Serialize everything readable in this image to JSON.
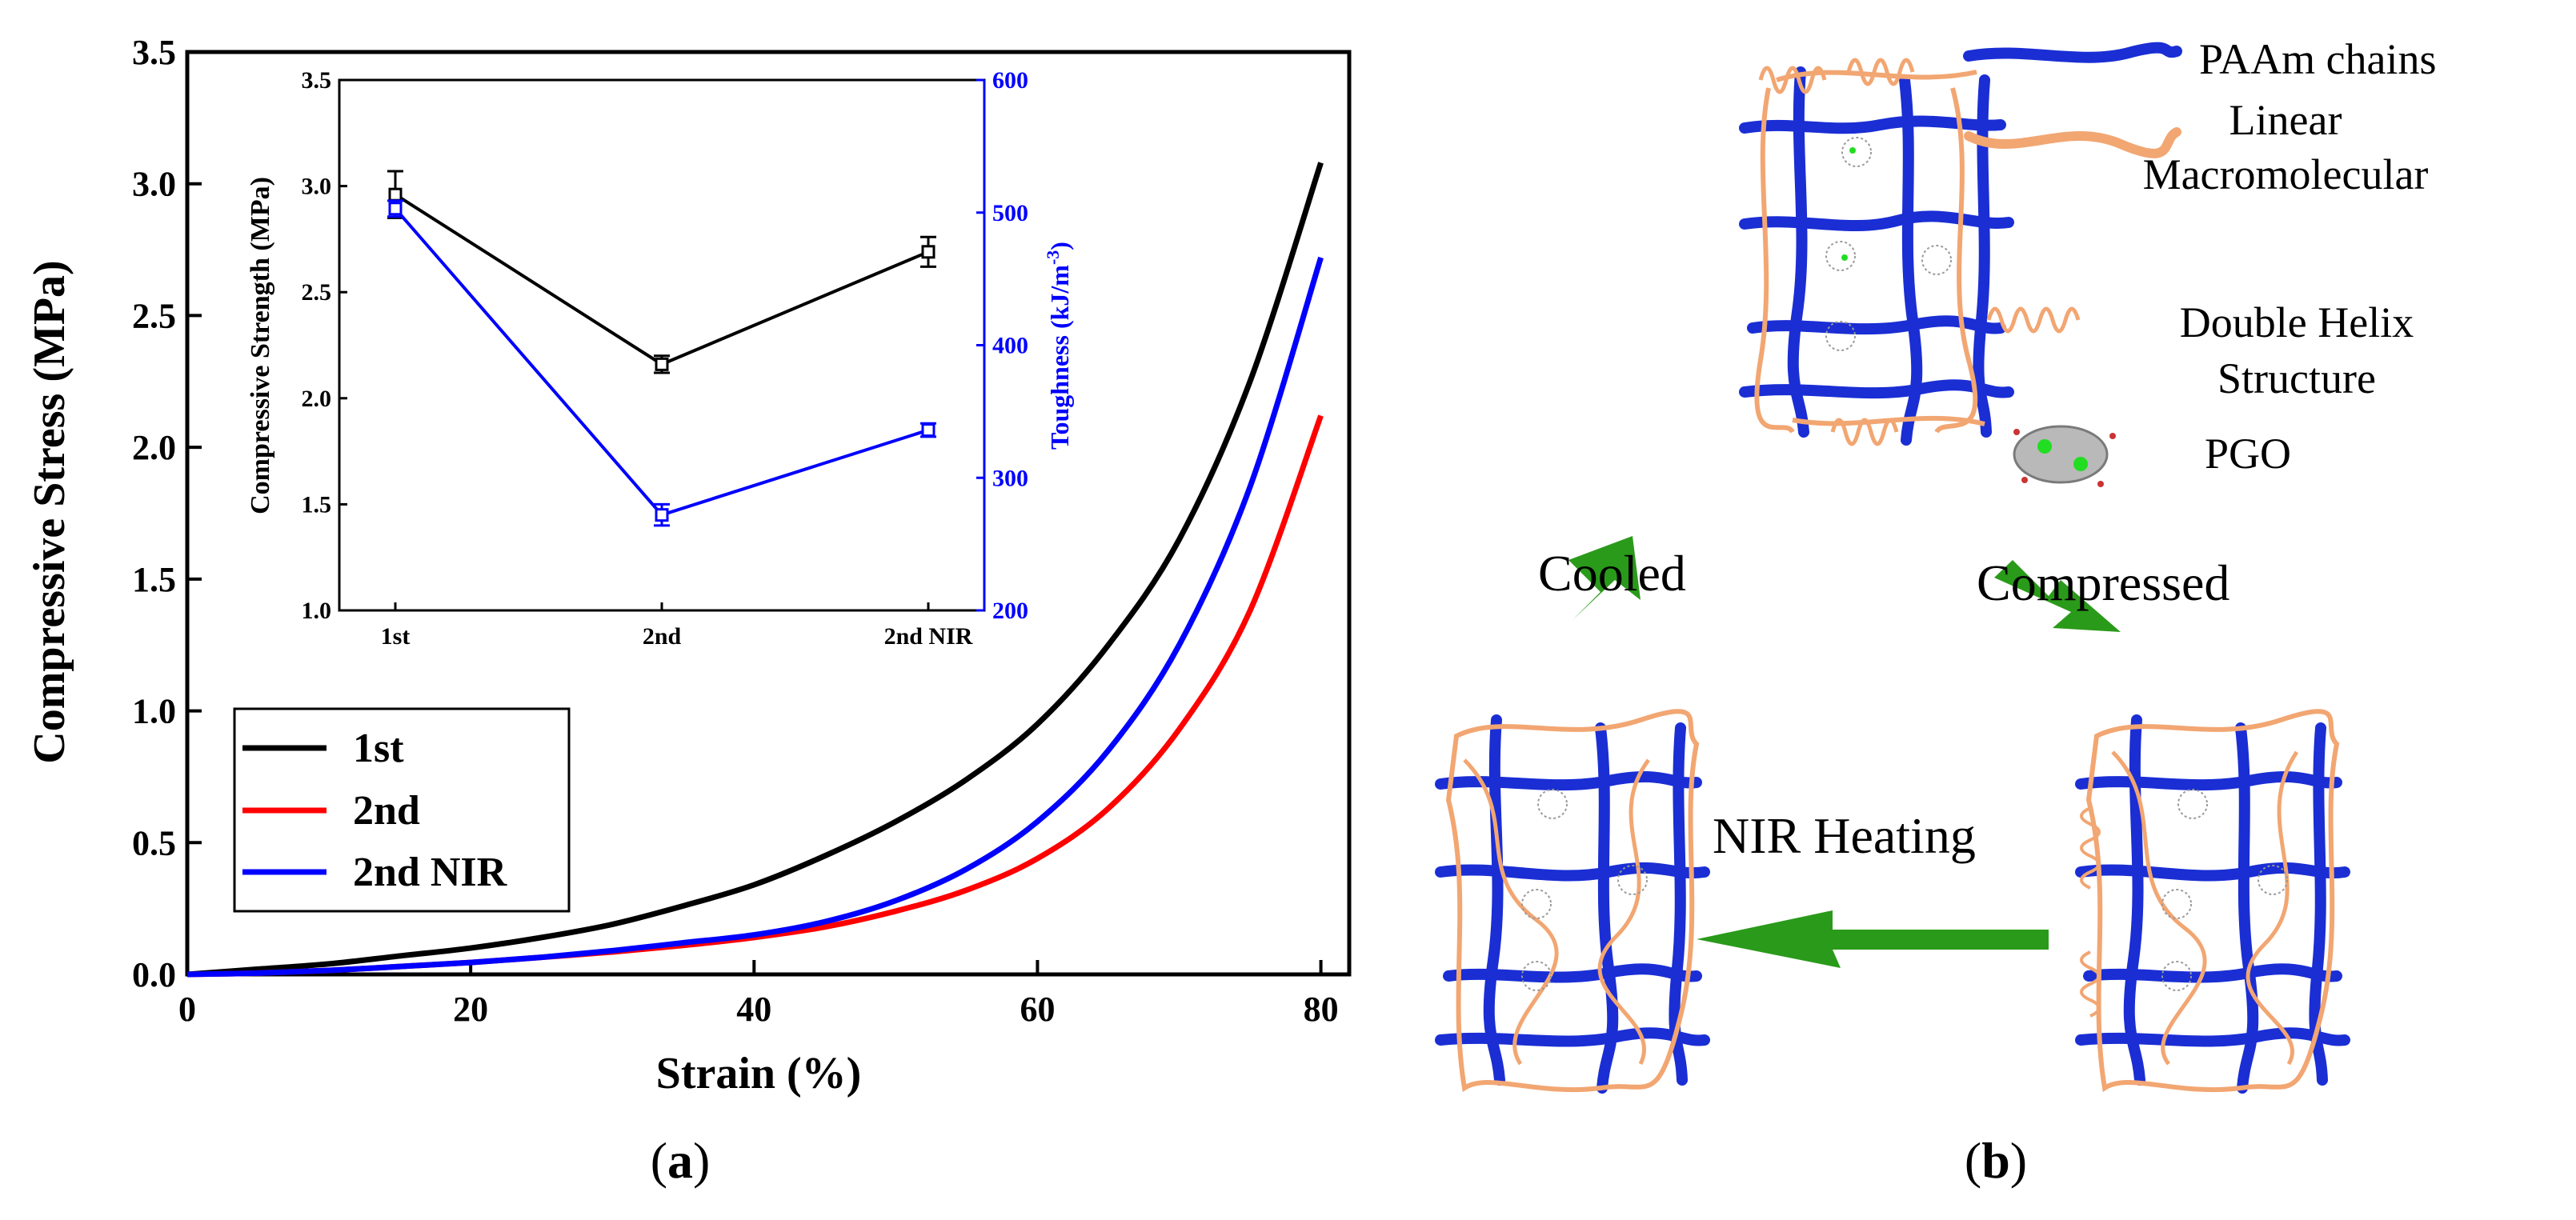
{
  "panel_a": {
    "label_open": "(",
    "label_letter": "a",
    "label_close": ")"
  },
  "panel_b": {
    "label_open": "(",
    "label_letter": "b",
    "label_close": ")",
    "legend": {
      "paam": "PAAm chains",
      "linear_1": "Linear",
      "linear_2": "Macromolecular",
      "helix_1": "Double Helix",
      "helix_2": "Structure",
      "pgo": "PGO"
    },
    "arrows": {
      "cooled": "Cooled",
      "compressed": "Compressed",
      "nir": "NIR Heating"
    }
  },
  "colors": {
    "first": "#000000",
    "second": "#ff0000",
    "nir": "#0000ff",
    "paam": "#1a2ed4",
    "linear": "#f2a672",
    "arrow": "#2a9a1a",
    "pgo_green": "#22dd22"
  },
  "chart_data": [
    {
      "type": "line",
      "title": "",
      "xlabel": "Strain (%)",
      "ylabel": "Compressive Stress (MPa)",
      "xlim": [
        0,
        82
      ],
      "ylim": [
        0,
        3.5
      ],
      "xticks": [
        0,
        20,
        40,
        60,
        80
      ],
      "yticks": [
        0.0,
        0.5,
        1.0,
        1.5,
        2.0,
        2.5,
        3.0,
        3.5
      ],
      "x": [
        0,
        5,
        10,
        15,
        20,
        25,
        30,
        35,
        40,
        45,
        50,
        55,
        60,
        65,
        70,
        75,
        80
      ],
      "series": [
        {
          "name": "1st",
          "values": [
            0.0,
            0.02,
            0.04,
            0.07,
            0.1,
            0.14,
            0.19,
            0.26,
            0.34,
            0.45,
            0.58,
            0.74,
            0.95,
            1.25,
            1.65,
            2.25,
            3.08
          ]
        },
        {
          "name": "2nd",
          "values": [
            0.0,
            0.005,
            0.015,
            0.03,
            0.045,
            0.065,
            0.085,
            0.11,
            0.14,
            0.18,
            0.24,
            0.32,
            0.44,
            0.63,
            0.93,
            1.38,
            2.12
          ]
        },
        {
          "name": "2nd NIR",
          "values": [
            0.0,
            0.005,
            0.015,
            0.03,
            0.045,
            0.065,
            0.09,
            0.12,
            0.15,
            0.2,
            0.28,
            0.4,
            0.58,
            0.85,
            1.25,
            1.85,
            2.72
          ]
        }
      ],
      "legend_position": "bottom-left"
    },
    {
      "type": "line",
      "title": "",
      "xlabel": "",
      "ylabel": "Compressive Strength (MPa)",
      "y2label_main": "Toughness (kJ/m",
      "y2label_sup": "-3",
      "y2label_end": ")",
      "categories": [
        "1st",
        "2nd",
        "2nd NIR"
      ],
      "ylim": [
        1.0,
        3.5
      ],
      "y2lim": [
        200,
        600
      ],
      "yticks": [
        1.0,
        1.5,
        2.0,
        2.5,
        3.0,
        3.5
      ],
      "y2ticks": [
        200,
        300,
        400,
        500,
        600
      ],
      "series": [
        {
          "name": "Compressive Strength",
          "axis": "left",
          "values": [
            2.96,
            2.16,
            2.69
          ],
          "errors": [
            0.11,
            0.04,
            0.07
          ]
        },
        {
          "name": "Toughness",
          "axis": "right",
          "values": [
            503,
            272,
            336
          ],
          "errors": [
            6,
            8,
            5
          ]
        }
      ]
    }
  ]
}
